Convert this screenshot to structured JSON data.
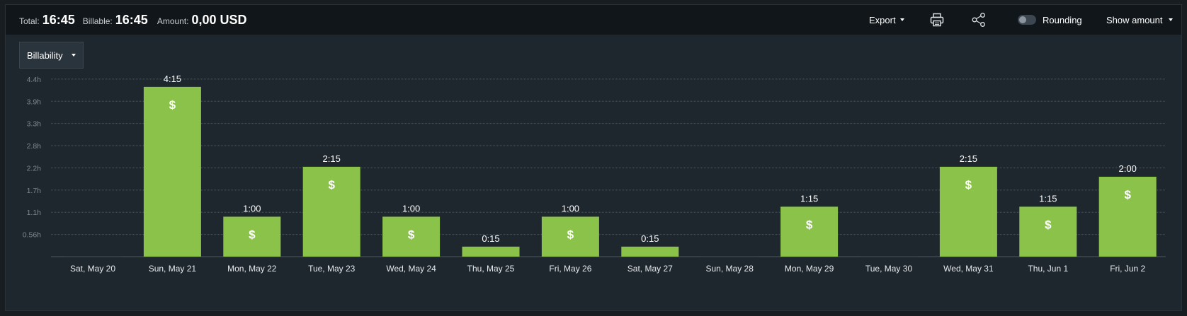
{
  "summary": {
    "total_label": "Total:",
    "total_value": "16:45",
    "billable_label": "Billable:",
    "billable_value": "16:45",
    "amount_label": "Amount:",
    "amount_value": "0,00 USD"
  },
  "toolbar": {
    "export_label": "Export",
    "print_icon": "printer-icon",
    "share_icon": "share-icon",
    "rounding_label": "Rounding",
    "rounding_enabled": false,
    "show_amount_label": "Show amount"
  },
  "filter": {
    "selected": "Billability"
  },
  "colors": {
    "bar": "#8bc34a",
    "background": "#1f272e",
    "topbar": "#10161a"
  },
  "chart_data": {
    "type": "bar",
    "ylabel": "",
    "xlabel": "",
    "ylim": [
      0,
      4.45
    ],
    "y_ticks": [
      "0.56h",
      "1.1h",
      "1.7h",
      "2.2h",
      "2.8h",
      "3.3h",
      "3.9h",
      "4.4h"
    ],
    "y_tick_values": [
      0.556,
      1.111,
      1.667,
      2.222,
      2.778,
      3.333,
      3.889,
      4.444
    ],
    "categories": [
      "Sat, May 20",
      "Sun, May 21",
      "Mon, May 22",
      "Tue, May 23",
      "Wed, May 24",
      "Thu, May 25",
      "Fri, May 26",
      "Sat, May 27",
      "Sun, May 28",
      "Mon, May 29",
      "Tue, May 30",
      "Wed, May 31",
      "Thu, Jun 1",
      "Fri, Jun 2"
    ],
    "values": [
      0,
      4.25,
      1.0,
      2.25,
      1.0,
      0.25,
      1.0,
      0.25,
      0,
      1.25,
      0,
      2.25,
      1.25,
      2.0
    ],
    "value_labels": [
      "",
      "4:15",
      "1:00",
      "2:15",
      "1:00",
      "0:15",
      "1:00",
      "0:15",
      "",
      "1:15",
      "",
      "2:15",
      "1:15",
      "2:00"
    ],
    "billable_marker": "$",
    "grid": true
  }
}
